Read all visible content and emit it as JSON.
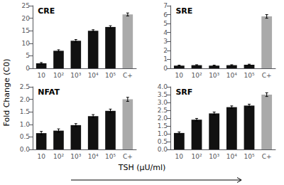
{
  "chart_data": [
    {
      "type": "bar",
      "title": "CRE",
      "categories": [
        "10",
        "10²",
        "10³",
        "10⁴",
        "10⁵",
        "C+"
      ],
      "values": [
        2.0,
        7.0,
        11.0,
        15.0,
        16.5,
        21.5
      ],
      "errors": [
        0.3,
        0.4,
        0.5,
        0.4,
        0.5,
        0.6
      ],
      "colors": [
        "#111111",
        "#111111",
        "#111111",
        "#111111",
        "#111111",
        "#aaaaaa"
      ],
      "ylim": [
        0,
        25
      ],
      "yticks": [
        0,
        5,
        10,
        15,
        20,
        25
      ],
      "grid": false
    },
    {
      "type": "bar",
      "title": "SRE",
      "categories": [
        "10",
        "10²",
        "10³",
        "10⁴",
        "10⁵",
        "C+"
      ],
      "values": [
        0.3,
        0.35,
        0.3,
        0.35,
        0.4,
        5.8
      ],
      "errors": [
        0.05,
        0.05,
        0.05,
        0.05,
        0.06,
        0.2
      ],
      "colors": [
        "#111111",
        "#111111",
        "#111111",
        "#111111",
        "#111111",
        "#aaaaaa"
      ],
      "ylim": [
        0,
        7
      ],
      "yticks": [
        0,
        1,
        2,
        3,
        4,
        5,
        6,
        7
      ],
      "grid": false
    },
    {
      "type": "bar",
      "title": "NFAT",
      "categories": [
        "10",
        "10²",
        "10³",
        "10⁴",
        "10⁵",
        "C+"
      ],
      "values": [
        0.65,
        0.75,
        0.97,
        1.33,
        1.54,
        2.0
      ],
      "errors": [
        0.07,
        0.07,
        0.06,
        0.06,
        0.07,
        0.08
      ],
      "colors": [
        "#111111",
        "#111111",
        "#111111",
        "#111111",
        "#111111",
        "#aaaaaa"
      ],
      "ylim": [
        0,
        2.5
      ],
      "yticks": [
        {
          "value": 0,
          "label": "0.0"
        },
        0.5,
        {
          "value": 1.0,
          "label": "1.0"
        },
        1.5,
        {
          "value": 2.0,
          "label": "2.0"
        },
        2.5
      ],
      "grid": false
    },
    {
      "type": "bar",
      "title": "SRF",
      "categories": [
        "10",
        "10²",
        "10³",
        "10⁴",
        "10⁵",
        "C+"
      ],
      "values": [
        1.05,
        1.9,
        2.3,
        2.7,
        2.8,
        3.5
      ],
      "errors": [
        0.07,
        0.08,
        0.09,
        0.08,
        0.09,
        0.12
      ],
      "colors": [
        "#111111",
        "#111111",
        "#111111",
        "#111111",
        "#111111",
        "#aaaaaa"
      ],
      "ylim": [
        0,
        4
      ],
      "yticks": [
        {
          "value": 0,
          "label": "0.0"
        },
        0.5,
        {
          "value": 1.0,
          "label": "1.0"
        },
        1.5,
        {
          "value": 2.0,
          "label": "2.0"
        },
        2.5,
        {
          "value": 3.0,
          "label": "3.0"
        },
        3.5,
        {
          "value": 4.0,
          "label": "4.0"
        }
      ],
      "grid": false
    }
  ],
  "ylabel": "Fold Change (C0)",
  "xlabel": "TSH (μU/ml)"
}
